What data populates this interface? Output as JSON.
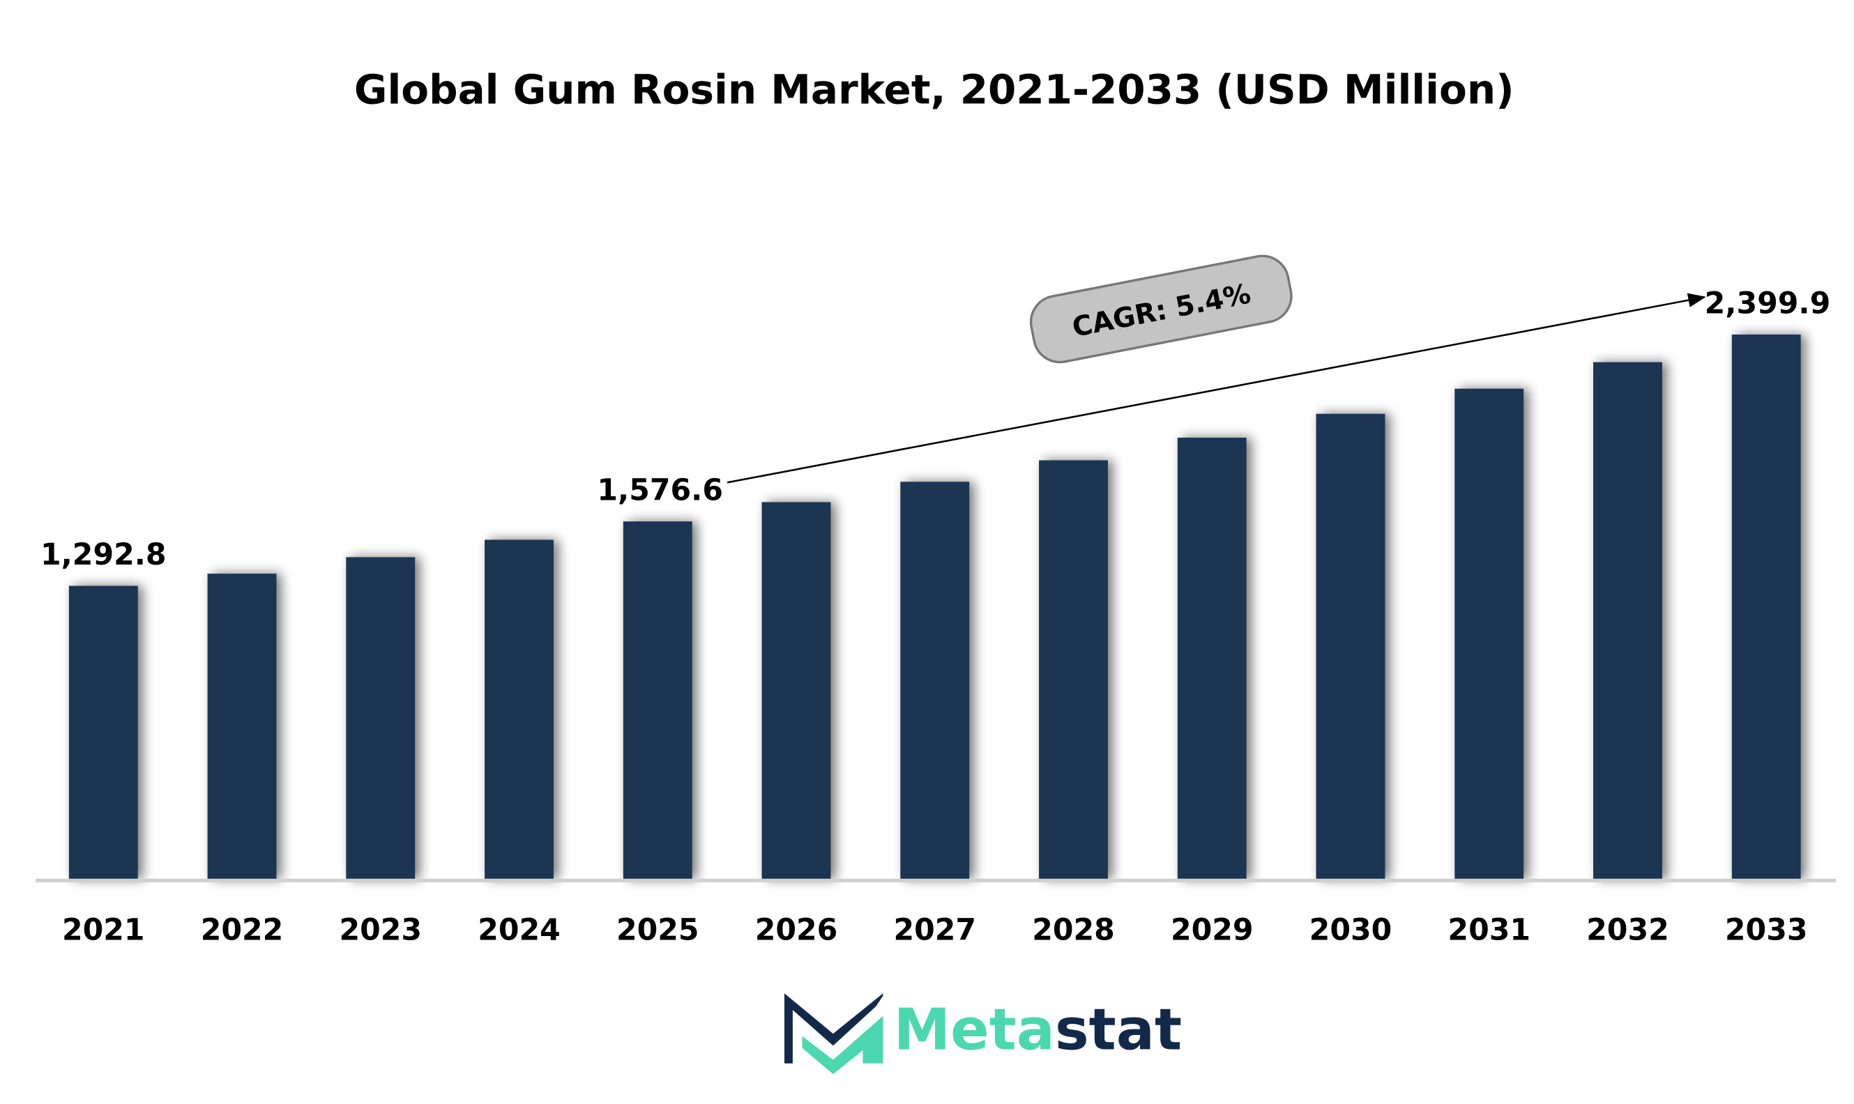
{
  "chart_data": {
    "type": "bar",
    "title": "Global Gum Rosin Market, 2021-2033 (USD Million)",
    "xlabel": "",
    "ylabel": "",
    "ylim": [
      0,
      2500
    ],
    "grid": false,
    "categories": [
      "2021",
      "2022",
      "2023",
      "2024",
      "2025",
      "2026",
      "2027",
      "2028",
      "2029",
      "2030",
      "2031",
      "2032",
      "2033"
    ],
    "values": [
      1292.8,
      1346.5,
      1419.2,
      1495.8,
      1576.6,
      1661.7,
      1751.4,
      1846.0,
      1945.7,
      2050.8,
      2161.5,
      2278.2,
      2399.9
    ],
    "data_labels": {
      "2021": "1,292.8",
      "2025": "1,576.6",
      "2033": "2,399.9"
    },
    "annotation": "CAGR: 5.4%",
    "bar_color": "#1B3452"
  },
  "logo": {
    "text_a": "Meta",
    "text_b": "stat",
    "color_a": "#4CD8AE",
    "color_b": "#13294A"
  }
}
